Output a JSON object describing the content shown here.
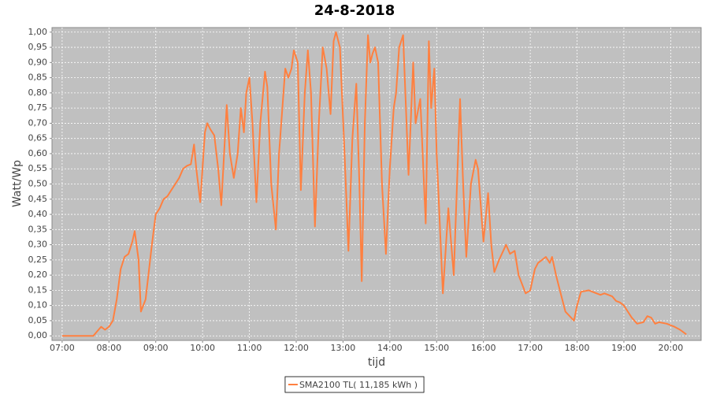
{
  "chart_data": {
    "type": "line",
    "title": "24-8-2018",
    "xlabel": "tijd",
    "ylabel": "Watt/Wp",
    "x": [
      "07:00",
      "07:40",
      "07:45",
      "07:50",
      "07:55",
      "08:00",
      "08:05",
      "08:10",
      "08:15",
      "08:20",
      "08:25",
      "08:30",
      "08:33",
      "08:38",
      "08:41",
      "08:47",
      "08:55",
      "09:00",
      "09:05",
      "09:10",
      "09:15",
      "09:20",
      "09:25",
      "09:30",
      "09:35",
      "09:40",
      "09:45",
      "09:49",
      "09:52",
      "09:57",
      "10:03",
      "10:06",
      "10:10",
      "10:15",
      "10:20",
      "10:24",
      "10:31",
      "10:35",
      "10:40",
      "10:45",
      "10:49",
      "10:53",
      "10:56",
      "11:00",
      "11:04",
      "11:09",
      "11:14",
      "11:20",
      "11:23",
      "11:28",
      "11:34",
      "11:38",
      "11:46",
      "11:50",
      "11:54",
      "11:57",
      "12:02",
      "12:06",
      "12:11",
      "12:15",
      "12:19",
      "12:24",
      "12:29",
      "12:34",
      "12:39",
      "12:44",
      "12:48",
      "12:51",
      "12:56",
      "13:02",
      "13:07",
      "13:12",
      "13:17",
      "13:21",
      "13:24",
      "13:28",
      "13:32",
      "13:35",
      "13:38",
      "13:41",
      "13:45",
      "13:50",
      "13:55",
      "14:00",
      "14:05",
      "14:08",
      "14:12",
      "14:17",
      "14:24",
      "14:30",
      "14:33",
      "14:39",
      "14:46",
      "14:50",
      "14:53",
      "14:57",
      "15:00",
      "15:08",
      "15:15",
      "15:22",
      "15:30",
      "15:34",
      "15:38",
      "15:44",
      "15:50",
      "15:53",
      "16:00",
      "16:06",
      "16:10",
      "16:14",
      "16:20",
      "16:29",
      "16:34",
      "16:40",
      "16:45",
      "16:54",
      "17:00",
      "17:06",
      "17:10",
      "17:15",
      "17:20",
      "17:25",
      "17:28",
      "17:33",
      "17:38",
      "17:45",
      "17:56",
      "18:00",
      "18:05",
      "18:15",
      "18:25",
      "18:30",
      "18:35",
      "18:45",
      "18:50",
      "18:55",
      "19:00",
      "19:05",
      "19:10",
      "19:17",
      "19:25",
      "19:30",
      "19:35",
      "19:40",
      "19:45",
      "19:55",
      "20:05",
      "20:12",
      "20:20"
    ],
    "series": [
      {
        "name": "SMA2100 TL( 11,185 kWh )",
        "color": "#ff8040",
        "values": [
          0,
          0,
          0.015,
          0.03,
          0.02,
          0.03,
          0.05,
          0.12,
          0.22,
          0.26,
          0.27,
          0.31,
          0.345,
          0.25,
          0.08,
          0.12,
          0.3,
          0.4,
          0.42,
          0.45,
          0.46,
          0.48,
          0.5,
          0.52,
          0.55,
          0.56,
          0.565,
          0.63,
          0.55,
          0.44,
          0.67,
          0.7,
          0.68,
          0.66,
          0.55,
          0.43,
          0.76,
          0.6,
          0.52,
          0.6,
          0.75,
          0.67,
          0.8,
          0.85,
          0.7,
          0.44,
          0.7,
          0.87,
          0.82,
          0.5,
          0.35,
          0.6,
          0.88,
          0.85,
          0.88,
          0.94,
          0.9,
          0.48,
          0.8,
          0.94,
          0.8,
          0.36,
          0.7,
          0.95,
          0.88,
          0.73,
          0.97,
          1.0,
          0.95,
          0.6,
          0.28,
          0.65,
          0.83,
          0.5,
          0.18,
          0.7,
          0.99,
          0.9,
          0.93,
          0.95,
          0.9,
          0.5,
          0.27,
          0.55,
          0.75,
          0.8,
          0.95,
          0.99,
          0.53,
          0.9,
          0.7,
          0.78,
          0.37,
          0.97,
          0.75,
          0.88,
          0.6,
          0.14,
          0.42,
          0.2,
          0.78,
          0.5,
          0.26,
          0.5,
          0.58,
          0.55,
          0.31,
          0.47,
          0.3,
          0.21,
          0.25,
          0.3,
          0.27,
          0.28,
          0.2,
          0.14,
          0.15,
          0.22,
          0.24,
          0.25,
          0.26,
          0.24,
          0.26,
          0.2,
          0.15,
          0.08,
          0.05,
          0.1,
          0.145,
          0.15,
          0.14,
          0.135,
          0.14,
          0.13,
          0.115,
          0.11,
          0.1,
          0.08,
          0.06,
          0.04,
          0.045,
          0.065,
          0.06,
          0.04,
          0.045,
          0.04,
          0.03,
          0.02,
          0.005
        ]
      }
    ],
    "xlim": [
      "06:47",
      "20:39"
    ],
    "xticks": [
      "07:00",
      "08:00",
      "09:00",
      "10:00",
      "11:00",
      "12:00",
      "13:00",
      "14:00",
      "15:00",
      "16:00",
      "17:00",
      "18:00",
      "19:00",
      "20:00"
    ],
    "ylim": [
      -0.015,
      1.015
    ],
    "yticks": [
      {
        "value": 0,
        "label": "0,00"
      },
      {
        "value": 0.05,
        "label": "0,05"
      },
      {
        "value": 0.1,
        "label": "0,10"
      },
      {
        "value": 0.15,
        "label": "0,15"
      },
      {
        "value": 0.2,
        "label": "0,20"
      },
      {
        "value": 0.25,
        "label": "0,25"
      },
      {
        "value": 0.3,
        "label": "0,30"
      },
      {
        "value": 0.35,
        "label": "0,35"
      },
      {
        "value": 0.4,
        "label": "0,40"
      },
      {
        "value": 0.45,
        "label": "0,45"
      },
      {
        "value": 0.5,
        "label": "0,50"
      },
      {
        "value": 0.55,
        "label": "0,55"
      },
      {
        "value": 0.6,
        "label": "0,60"
      },
      {
        "value": 0.65,
        "label": "0,65"
      },
      {
        "value": 0.7,
        "label": "0,70"
      },
      {
        "value": 0.75,
        "label": "0,75"
      },
      {
        "value": 0.8,
        "label": "0,80"
      },
      {
        "value": 0.85,
        "label": "0,85"
      },
      {
        "value": 0.9,
        "label": "0,90"
      },
      {
        "value": 0.95,
        "label": "0,95"
      },
      {
        "value": 1.0,
        "label": "1,00"
      }
    ],
    "grid": true,
    "legend": "bottom"
  }
}
